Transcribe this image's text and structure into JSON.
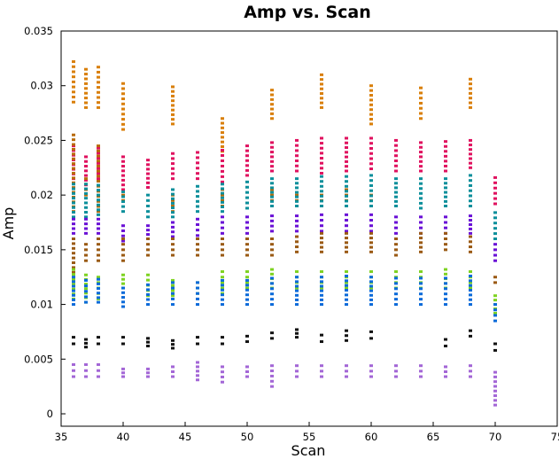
{
  "chart_data": {
    "type": "scatter",
    "title": "Amp vs. Scan",
    "xlabel": "Scan",
    "ylabel": "Amp",
    "xlim": [
      35,
      75
    ],
    "ylim": [
      0,
      0.035
    ],
    "x_ticks": [
      "35",
      "40",
      "45",
      "50",
      "55",
      "60",
      "65",
      "70",
      "75"
    ],
    "y_ticks": [
      "0",
      "0.005",
      "0.01",
      "0.015",
      "0.02",
      "0.025",
      "0.03",
      "0.035"
    ],
    "grid": false,
    "legend": "none",
    "scans": [
      36,
      37,
      38,
      40,
      42,
      44,
      46,
      48,
      50,
      52,
      54,
      56,
      58,
      60,
      62,
      64,
      66,
      68,
      70
    ],
    "series": [
      {
        "color": "#d97f0a",
        "values": [
          [
            0.0285,
            0.0322
          ],
          [
            0.028,
            0.0315
          ],
          [
            0.028,
            0.0317
          ],
          [
            0.026,
            0.0302
          ],
          null,
          [
            0.0265,
            0.0299
          ],
          null,
          [
            0.024,
            0.027
          ],
          null,
          [
            0.027,
            0.0296
          ],
          null,
          [
            0.028,
            0.031
          ],
          null,
          [
            0.0265,
            0.03
          ],
          null,
          [
            0.027,
            0.0298
          ],
          null,
          [
            0.028,
            0.0306
          ],
          null
        ]
      },
      {
        "color": "#e0115f",
        "values": [
          [
            0.0215,
            0.0245
          ],
          [
            0.0205,
            0.0235
          ],
          [
            0.0215,
            0.0243
          ],
          [
            0.0205,
            0.0235
          ],
          [
            0.0207,
            0.0232
          ],
          [
            0.0215,
            0.0238
          ],
          [
            0.0215,
            0.0239
          ],
          [
            0.0212,
            0.0241
          ],
          [
            0.0218,
            0.0245
          ],
          [
            0.0222,
            0.0248
          ],
          [
            0.0222,
            0.025
          ],
          [
            0.022,
            0.0252
          ],
          [
            0.0222,
            0.0252
          ],
          [
            0.0224,
            0.0252
          ],
          [
            0.0222,
            0.025
          ],
          [
            0.0222,
            0.0248
          ],
          [
            0.0222,
            0.0249
          ],
          [
            0.0225,
            0.025
          ],
          [
            0.0192,
            0.0216
          ]
        ]
      },
      {
        "color": "#b86b0a",
        "values": [
          [
            0.0185,
            0.0255
          ],
          [
            0.02,
            0.0215
          ],
          [
            0.0185,
            0.0245
          ],
          [
            0.0195,
            0.02
          ],
          null,
          [
            0.0185,
            0.02
          ],
          null,
          [
            0.019,
            0.0205
          ],
          null,
          [
            0.0195,
            0.0205
          ],
          [
            0.019,
            0.02
          ],
          [
            0.019,
            0.02
          ],
          [
            0.0195,
            0.0205
          ],
          [
            0.019,
            0.02
          ],
          null,
          null,
          null,
          null,
          null
        ]
      },
      {
        "color": "#0b8f9b",
        "values": [
          [
            0.018,
            0.021
          ],
          [
            0.018,
            0.021
          ],
          [
            0.0182,
            0.0209
          ],
          [
            0.0185,
            0.0203
          ],
          [
            0.018,
            0.02
          ],
          [
            0.018,
            0.0205
          ],
          [
            0.0185,
            0.0208
          ],
          [
            0.0185,
            0.021
          ],
          [
            0.0188,
            0.0212
          ],
          [
            0.019,
            0.0215
          ],
          [
            0.019,
            0.0215
          ],
          [
            0.019,
            0.0217
          ],
          [
            0.019,
            0.0217
          ],
          [
            0.019,
            0.0218
          ],
          [
            0.019,
            0.0215
          ],
          [
            0.0188,
            0.0215
          ],
          [
            0.019,
            0.0215
          ],
          [
            0.019,
            0.0218
          ],
          [
            0.016,
            0.0184
          ]
        ]
      },
      {
        "color": "#6a10d6",
        "values": [
          [
            0.0165,
            0.0178
          ],
          [
            0.0165,
            0.0178
          ],
          [
            0.0165,
            0.0178
          ],
          [
            0.0158,
            0.0172
          ],
          [
            0.016,
            0.0172
          ],
          [
            0.0162,
            0.0175
          ],
          [
            0.0163,
            0.0178
          ],
          [
            0.0165,
            0.018
          ],
          [
            0.0165,
            0.018
          ],
          [
            0.0167,
            0.0181
          ],
          [
            0.0167,
            0.0181
          ],
          [
            0.0167,
            0.0182
          ],
          [
            0.0167,
            0.0182
          ],
          [
            0.0167,
            0.0182
          ],
          [
            0.0165,
            0.018
          ],
          [
            0.0165,
            0.018
          ],
          [
            0.0165,
            0.018
          ],
          [
            0.0165,
            0.0181
          ],
          [
            0.014,
            0.0155
          ]
        ]
      },
      {
        "color": "#9a5a14",
        "values": [
          [
            0.0125,
            0.016
          ],
          [
            0.014,
            0.0155
          ],
          [
            0.014,
            0.016
          ],
          [
            0.014,
            0.016
          ],
          [
            0.0145,
            0.016
          ],
          [
            0.0145,
            0.016
          ],
          [
            0.0145,
            0.016
          ],
          [
            0.0145,
            0.016
          ],
          [
            0.0145,
            0.016
          ],
          [
            0.0145,
            0.016
          ],
          [
            0.0148,
            0.0162
          ],
          [
            0.0148,
            0.0165
          ],
          [
            0.0148,
            0.0165
          ],
          [
            0.0148,
            0.0165
          ],
          [
            0.0145,
            0.016
          ],
          [
            0.0148,
            0.0165
          ],
          [
            0.015,
            0.0165
          ],
          [
            0.0148,
            0.0162
          ],
          [
            0.012,
            0.0125
          ]
        ]
      },
      {
        "color": "#7ed321",
        "values": [
          [
            0.0105,
            0.0132
          ],
          [
            0.0102,
            0.0127
          ],
          [
            0.0105,
            0.0125
          ],
          [
            0.0115,
            0.0127
          ],
          [
            0.0108,
            0.0127
          ],
          [
            0.0108,
            0.0122
          ],
          [
            0.011,
            0.012
          ],
          [
            0.011,
            0.013
          ],
          [
            0.0115,
            0.013
          ],
          [
            0.0115,
            0.0132
          ],
          [
            0.0115,
            0.013
          ],
          [
            0.0115,
            0.013
          ],
          [
            0.0115,
            0.013
          ],
          [
            0.0115,
            0.013
          ],
          [
            0.0115,
            0.013
          ],
          [
            0.0115,
            0.013
          ],
          [
            0.0115,
            0.0132
          ],
          [
            0.0115,
            0.013
          ],
          [
            0.0092,
            0.0108
          ]
        ]
      },
      {
        "color": "#0a6ad9",
        "values": [
          [
            0.01,
            0.0125
          ],
          [
            0.0102,
            0.0122
          ],
          [
            0.0102,
            0.0123
          ],
          [
            0.0098,
            0.0115
          ],
          [
            0.01,
            0.0118
          ],
          [
            0.01,
            0.012
          ],
          [
            0.01,
            0.012
          ],
          [
            0.01,
            0.0122
          ],
          [
            0.01,
            0.0122
          ],
          [
            0.01,
            0.0124
          ],
          [
            0.01,
            0.0125
          ],
          [
            0.01,
            0.0125
          ],
          [
            0.01,
            0.0126
          ],
          [
            0.01,
            0.0125
          ],
          [
            0.01,
            0.0124
          ],
          [
            0.01,
            0.0124
          ],
          [
            0.01,
            0.0124
          ],
          [
            0.01,
            0.0126
          ],
          [
            0.0085,
            0.01
          ]
        ]
      },
      {
        "color": "#111111",
        "values": [
          [
            0.0064,
            0.007
          ],
          [
            0.0061,
            0.0068
          ],
          [
            0.0064,
            0.007
          ],
          [
            0.0064,
            0.007
          ],
          [
            0.0062,
            0.0069
          ],
          [
            0.006,
            0.0067
          ],
          [
            0.0064,
            0.007
          ],
          [
            0.0064,
            0.007
          ],
          [
            0.0066,
            0.0071
          ],
          [
            0.0069,
            0.0074
          ],
          [
            0.007,
            0.0077
          ],
          [
            0.0066,
            0.0072
          ],
          [
            0.0067,
            0.0076
          ],
          [
            0.0069,
            0.0075
          ],
          null,
          null,
          [
            0.0062,
            0.0068
          ],
          [
            0.0071,
            0.0076
          ],
          [
            0.0058,
            0.0064
          ]
        ]
      },
      {
        "color": "#a366d6",
        "values": [
          [
            0.0034,
            0.0045
          ],
          [
            0.0034,
            0.0045
          ],
          [
            0.0034,
            0.0045
          ],
          [
            0.0034,
            0.0041
          ],
          [
            0.0034,
            0.0041
          ],
          [
            0.0034,
            0.0043
          ],
          [
            0.0031,
            0.0047
          ],
          [
            0.0029,
            0.0043
          ],
          [
            0.0034,
            0.0043
          ],
          [
            0.0025,
            0.0044
          ],
          [
            0.0034,
            0.0044
          ],
          [
            0.0034,
            0.0044
          ],
          [
            0.0034,
            0.0044
          ],
          [
            0.0034,
            0.0044
          ],
          [
            0.0034,
            0.0044
          ],
          [
            0.0034,
            0.0044
          ],
          [
            0.0034,
            0.0043
          ],
          [
            0.0034,
            0.0044
          ],
          [
            0.0008,
            0.0038
          ]
        ]
      }
    ]
  }
}
